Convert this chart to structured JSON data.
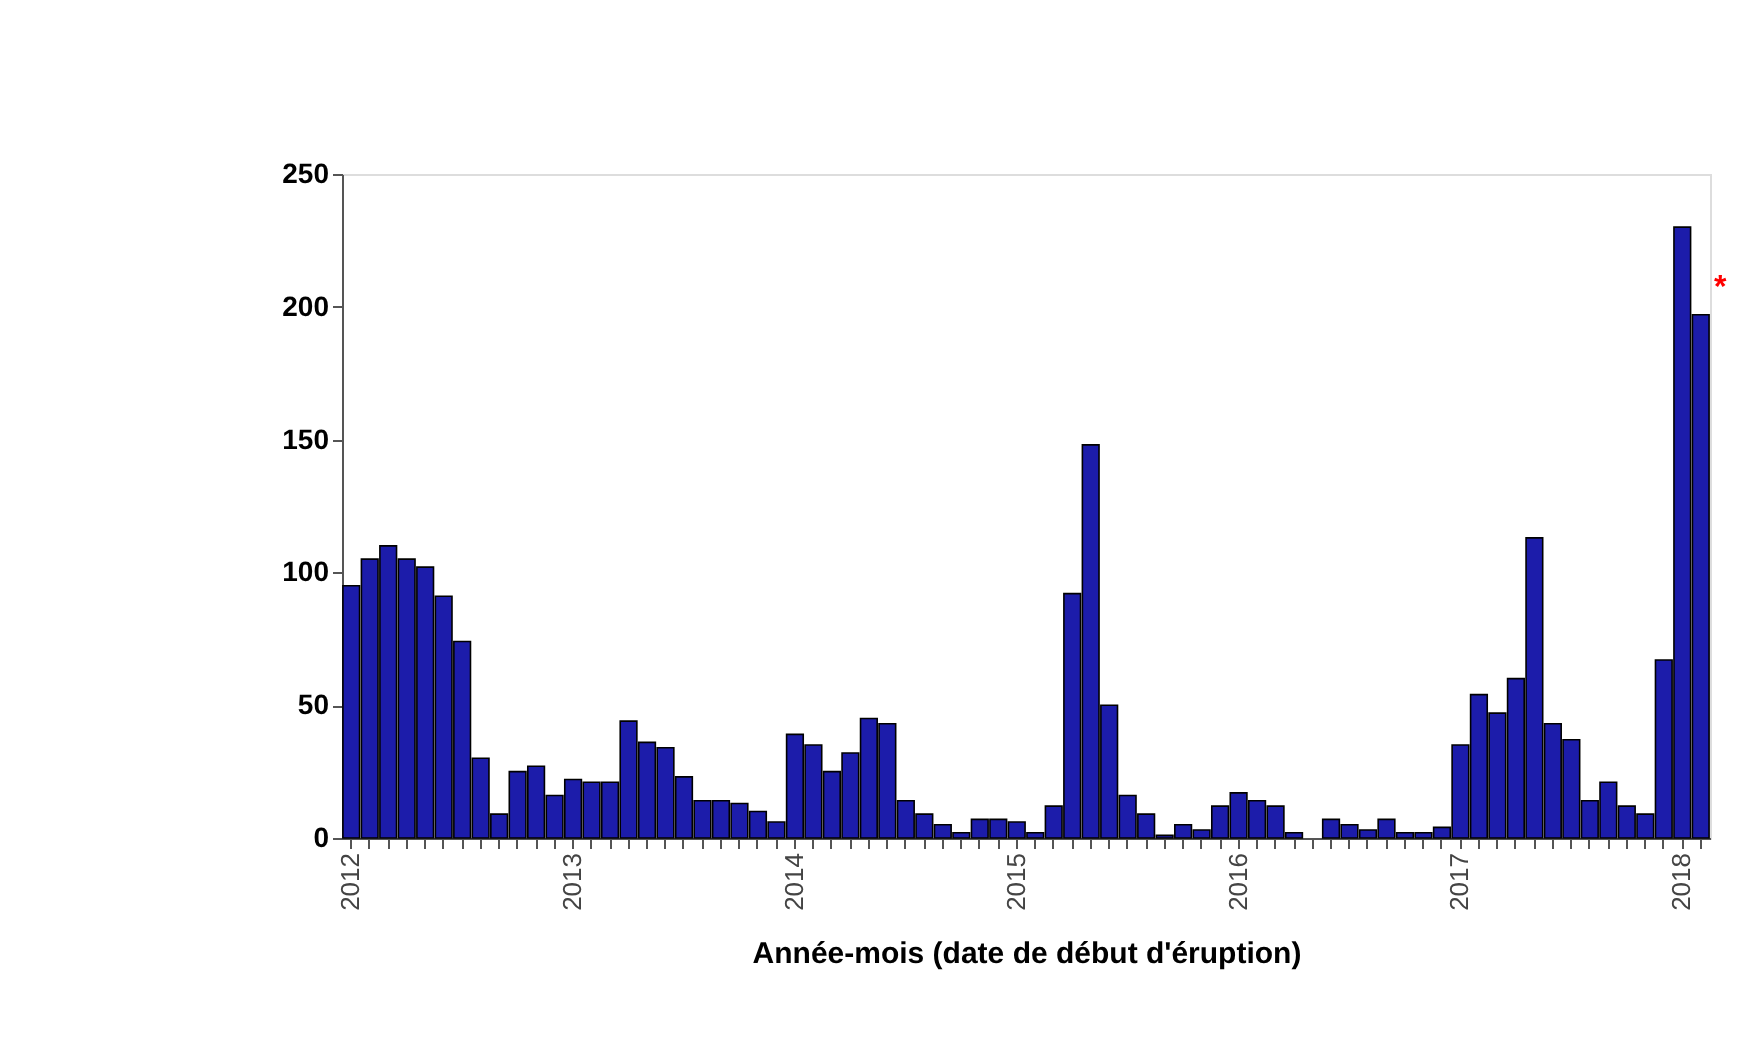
{
  "chart_data": {
    "type": "bar",
    "xlabel": "Année-mois (date de début d'éruption)",
    "categories": [
      "2012",
      null,
      null,
      null,
      null,
      null,
      null,
      null,
      null,
      null,
      null,
      null,
      "2013",
      null,
      null,
      null,
      null,
      null,
      null,
      null,
      null,
      null,
      null,
      null,
      "2014",
      null,
      null,
      null,
      null,
      null,
      null,
      null,
      null,
      null,
      null,
      null,
      "2015",
      null,
      null,
      null,
      null,
      null,
      null,
      null,
      null,
      null,
      null,
      null,
      "2016",
      null,
      null,
      null,
      null,
      null,
      null,
      null,
      null,
      null,
      null,
      null,
      "2017",
      null,
      null,
      null,
      null,
      null,
      null,
      null,
      null,
      null,
      null,
      null,
      "2018",
      null
    ],
    "values": [
      95,
      105,
      110,
      105,
      102,
      91,
      74,
      30,
      9,
      25,
      27,
      16,
      22,
      21,
      21,
      44,
      36,
      34,
      23,
      14,
      14,
      13,
      10,
      6,
      39,
      35,
      25,
      32,
      45,
      43,
      14,
      9,
      5,
      2,
      7,
      7,
      6,
      2,
      12,
      92,
      148,
      50,
      16,
      9,
      1,
      5,
      3,
      12,
      17,
      14,
      12,
      2,
      null,
      7,
      5,
      3,
      7,
      2,
      2,
      4,
      35,
      54,
      47,
      60,
      113,
      43,
      37,
      14,
      21,
      12,
      9,
      67,
      230,
      197
    ],
    "color": "#1c1caa",
    "ylim": [
      0,
      250
    ],
    "yticks": [
      0,
      50,
      100,
      150,
      200,
      250
    ],
    "grid": false,
    "annotations": [
      "*"
    ]
  }
}
